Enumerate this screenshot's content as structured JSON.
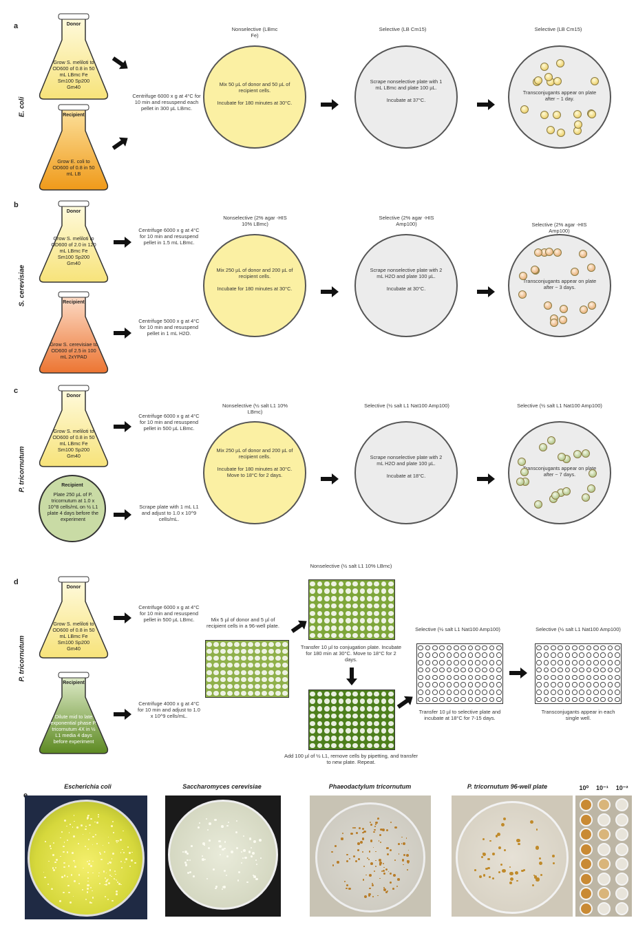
{
  "panel_a": {
    "letter": "a",
    "side": "E. coli",
    "donor": {
      "label": "Donor",
      "text": "Grow S. meliloti to OD600 of 0.8 in 50 mL LBmc Fe Sm100 Sp200 Gm40"
    },
    "recipient": {
      "label": "Recipient",
      "text": "Grow E. coli to OD600 of 0.8 in 50 mL LB"
    },
    "prep": "Centrifuge 6000 x g at 4°C for 10 min and resuspend each pellet in 300 µL LBmc.",
    "plate1_header": "Nonselective (LBmc Fe)",
    "plate1_text": "Mix 50 µL of donor and 50 µL of recipient cells.\n\nIncubate for 180 minutes at 30°C.",
    "plate2_header": "Selective (LB Cm15)",
    "plate2_text": "Scrape nonselective plate with 1 mL LBmc and plate 100 µL.\n\nIncubate at 37°C.",
    "plate3_header": "Selective (LB Cm15)",
    "plate3_text": "Transconjugants appear on plate after ~ 1 day."
  },
  "panel_b": {
    "letter": "b",
    "side": "S. cerevisiae",
    "donor": {
      "label": "Donor",
      "text": "Grow S. meliloti to OD600 of 2.0 in 120 mL LBmc Fe Sm100 Sp200 Gm40"
    },
    "recipient": {
      "label": "Recipient",
      "text": "Grow S. cerevisiae to OD600 of 2.5 in 100 mL 2xYPAD"
    },
    "prep_donor": "Centrifuge 6000 x g at 4°C for 10 min and resuspend pellet in 1.5 mL LBmc.",
    "prep_recipient": "Centrifuge 5000 x g at 4°C for 10 min and resuspend pellet in 1 mL H2O.",
    "plate1_header": "Nonselective (2% agar -HIS 10% LBmc)",
    "plate1_text": "Mix 250 µL of donor and 200 µL of recipient cells.\n\nIncubate for 180 minutes at 30°C.",
    "plate2_header": "Selective (2% agar -HIS Amp100)",
    "plate2_text": "Scrape nonselective plate with 2 mL H2O and plate 100 µL.\n\nIncubate at 30°C.",
    "plate3_header": "Selective (2% agar -HIS Amp100)",
    "plate3_text": "Transconjugants appear on plate after ~ 3 days."
  },
  "panel_c": {
    "letter": "c",
    "side": "P. tricornutum",
    "donor": {
      "label": "Donor",
      "text": "Grow S. meliloti to OD600 of 0.8 in 50 mL LBmc Fe Sm100 Sp200 Gm40"
    },
    "recipient": {
      "label": "Recipient",
      "text": "Plate 250 µL of P. tricornutum at 1.0 x 10^8 cells/mL on ½ L1 plate 4 days before the experiment"
    },
    "prep_donor": "Centrifuge 6000 x g at 4°C for 10 min and resuspend pellet in 500 µL LBmc.",
    "prep_recipient": "Scrape plate with 1 mL L1 and adjust to 1.0 x 10^9 cells/mL.",
    "plate1_header": "Nonselective (½ salt L1 10% LBmc)",
    "plate1_text": "Mix 250 µL of donor and 200 µL of recipient cells.\n\nIncubate for 180 minutes at 30°C. Move to 18°C for 2 days.",
    "plate2_header": "Selective (½ salt L1 Nat100 Amp100)",
    "plate2_text": "Scrape nonselective plate with 2 mL H2O and plate 100 µL.\n\nIncubate at 18°C.",
    "plate3_header": "Selective (½ salt L1 Nat100 Amp100)",
    "plate3_text": "Transconjugants appear on plate after ~ 7 days."
  },
  "panel_d": {
    "letter": "d",
    "side": "P. tricornutum",
    "donor": {
      "label": "Donor",
      "text": "Grow S. meliloti to OD600 of 0.8 in 50 mL LBmc Fe Sm100 Sp200 Gm40"
    },
    "recipient": {
      "label": "Recipient",
      "text": "Dilute mid to late exponential phase P. tricornutum 4X in ½ L1 media 4 days before experiment"
    },
    "prep_donor": "Centrifuge 6000 x g at 4°C for 10 min and resuspend pellet in 500 µL LBmc.",
    "prep_recipient": "Centrifuge 4000 x g at 4°C for 10 min and adjust to 1.0 x 10^9 cells/mL.",
    "mix": "Mix 5 µl of donor and 5 µl of recipient cells in a 96-well plate.",
    "nonsel_header": "Nonselective (½ salt L1 10% LBmc)",
    "transfer1": "Transfer 10 µl to conjugation plate. Incubate for 180 min at 30°C. Move to 18°C for 2 days.",
    "wash": "Add 100 µl of ½ L1, remove cells by pipetting, and transfer to new plate. Repeat.",
    "sel_header": "Selective (½ salt L1 Nat100 Amp100)",
    "transfer2": "Transfer 10 µl to selective plate and incubate at 18°C for 7-15 days.",
    "sel2_header": "Selective (½ salt L1 Nat100 Amp100)",
    "final": "Transconjugants appear in each single well."
  },
  "panel_e": {
    "letter": "e",
    "photos": [
      {
        "title": "Escherichia coli"
      },
      {
        "title": "Saccharomyces cerevisiae"
      },
      {
        "title": "Phaeodactylum tricornutum"
      },
      {
        "title": "P. tricornutum 96-well plate"
      }
    ],
    "dilutions": [
      "10⁰",
      "10⁻¹",
      "10⁻²"
    ]
  },
  "colors": {
    "donor_flask": "#fbeea0",
    "ecoli_flask": "#f2a628",
    "yeast_flask": "#f08a4a",
    "diatom_plate": "#c9dba5",
    "diatom_flask": "#6f9a2e",
    "plate_yellow": "#fbf0a3",
    "plate_grey": "#ececec"
  }
}
